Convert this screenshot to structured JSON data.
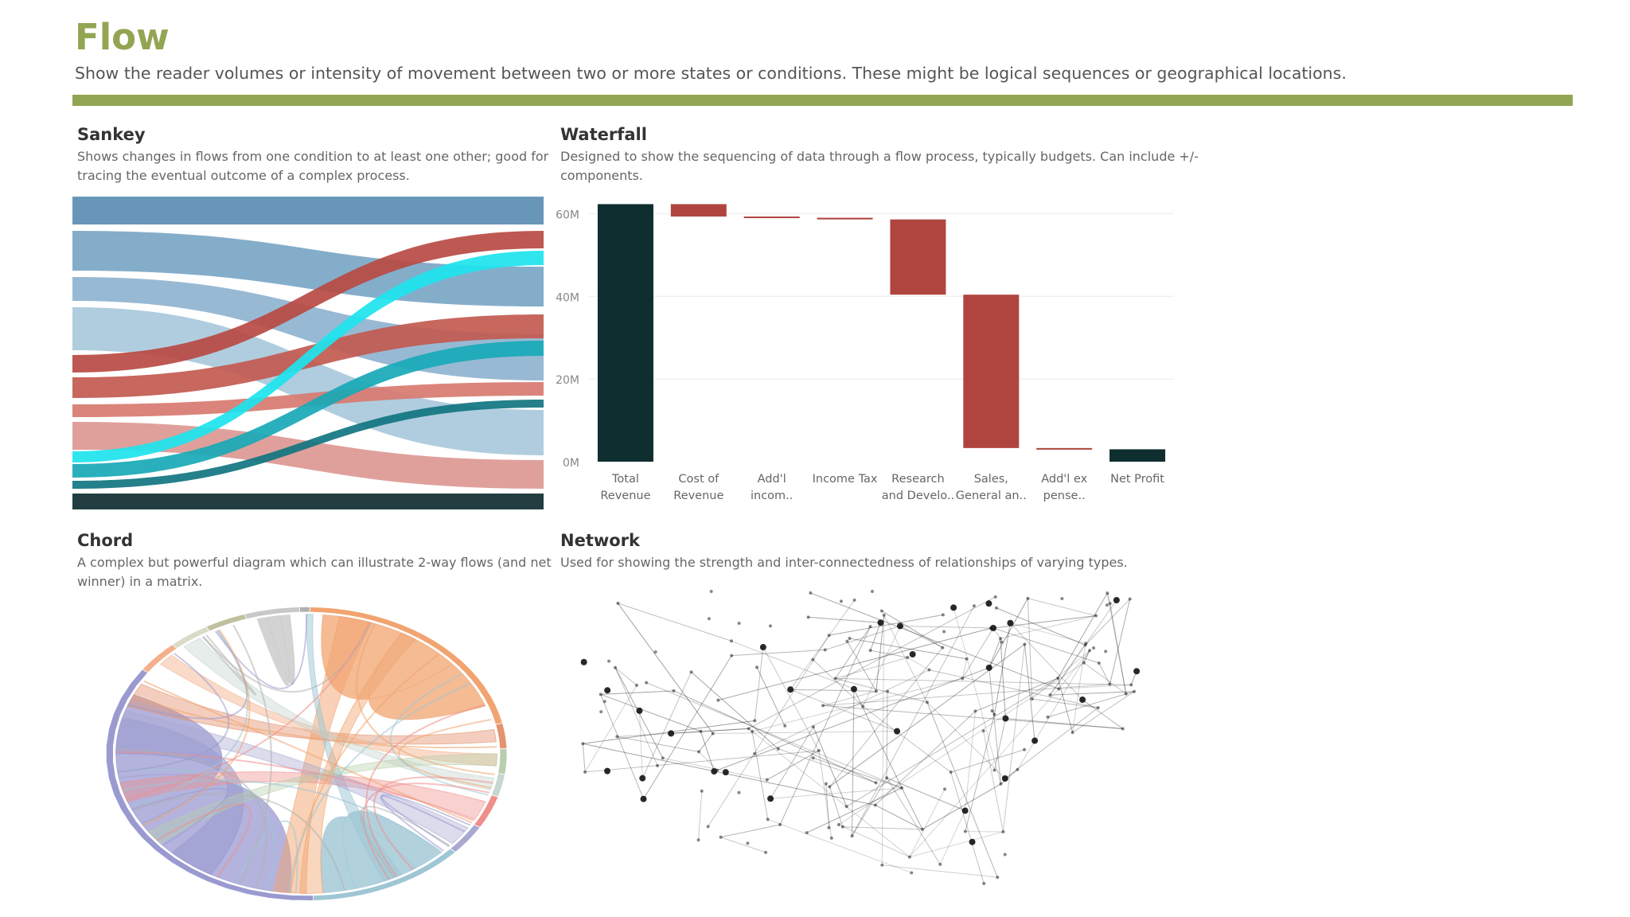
{
  "header": {
    "title": "Flow",
    "subtitle": "Show the reader volumes or intensity of movement between two or more states or conditions. These might be logical sequences or geographical locations."
  },
  "colors": {
    "accent": "#92a553",
    "waterfall_total": "#0f2e30",
    "waterfall_decrease": "#b0453f",
    "blue": "#5b8db3",
    "red": "#b94a43",
    "teal": "#18a9b7",
    "cyan": "#1de4ee"
  },
  "sankey": {
    "title": "Sankey",
    "desc1": "Shows changes in flows from one condition to at least one other; good for",
    "desc2": "tracing the eventual outcome of a complex process."
  },
  "waterfall": {
    "title": "Waterfall",
    "desc1": "Designed to show the sequencing of data through a flow process, typically budgets. Can include +/-",
    "desc2": "components."
  },
  "chord": {
    "title": "Chord",
    "desc1": "A complex but powerful diagram which can illustrate 2-way flows (and net",
    "desc2": "winner) in a matrix."
  },
  "network": {
    "title": "Network",
    "desc1": "Used for showing the strength and inter-connectedness of relationships of varying types."
  },
  "chart_data": {
    "type": "bar",
    "subtype": "waterfall",
    "title": "",
    "xlabel": "",
    "ylabel": "",
    "ylim": [
      0,
      62
    ],
    "y_ticks": [
      {
        "value": 0,
        "label": "0M"
      },
      {
        "value": 20,
        "label": "20M"
      },
      {
        "value": 40,
        "label": "40M"
      },
      {
        "value": 60,
        "label": "60M"
      }
    ],
    "grid": true,
    "bars": [
      {
        "l1": "Total",
        "l2": "Revenue",
        "start": 0,
        "end": 62.3,
        "kind": "total"
      },
      {
        "l1": "Cost of",
        "l2": "Revenue",
        "start": 62.3,
        "end": 59.3,
        "kind": "decrease"
      },
      {
        "l1": "Add'l",
        "l2": "incom..",
        "start": 59.3,
        "end": 59.0,
        "kind": "decrease"
      },
      {
        "l1": "Income Tax",
        "l2": "",
        "start": 59.0,
        "end": 58.6,
        "kind": "decrease"
      },
      {
        "l1": "Research",
        "l2": "and Develo..",
        "start": 58.6,
        "end": 40.4,
        "kind": "decrease"
      },
      {
        "l1": "Sales,",
        "l2": "General an..",
        "start": 40.4,
        "end": 3.3,
        "kind": "decrease"
      },
      {
        "l1": "Add'l ex",
        "l2": "pense..",
        "start": 3.3,
        "end": 3.0,
        "kind": "decrease"
      },
      {
        "l1": "Net Profit",
        "l2": "",
        "start": 3.0,
        "end": 0,
        "kind": "total"
      }
    ]
  }
}
